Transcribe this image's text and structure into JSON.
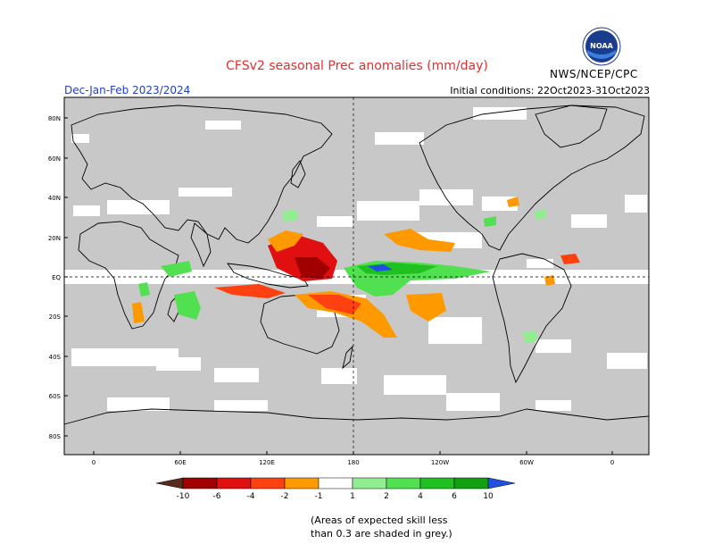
{
  "title": "CFSv2 seasonal Prec anomalies (mm/day)",
  "subtitle": "Dec-Jan-Feb 2023/2024",
  "initial_conditions": "Initial conditions: 22Oct2023-31Oct2023",
  "agency": "NWS/NCEP/CPC",
  "logo_text": "NOAA",
  "lat_labels": [
    "80N",
    "60N",
    "40N",
    "20N",
    "EQ",
    "20S",
    "40S",
    "60S",
    "80S"
  ],
  "lon_labels": [
    "0",
    "60E",
    "120E",
    "180",
    "120W",
    "60W",
    "0"
  ],
  "colorbar": {
    "ticks": [
      "-10",
      "-6",
      "-4",
      "-2",
      "-1",
      "1",
      "2",
      "4",
      "6",
      "10"
    ],
    "colors": [
      "#5a2a1e",
      "#a00000",
      "#e01010",
      "#ff4010",
      "#ff9900",
      "#ffffff",
      "#90ee90",
      "#50e050",
      "#20c020",
      "#10a010",
      "#2050e0"
    ]
  },
  "note_line1": "(Areas of expected skill less",
  "note_line2": "than 0.3 are shaded in grey.)",
  "colors": {
    "skill_grey": "#c8c8c8",
    "title_red": "#e03030",
    "subtitle_blue": "#2040c0"
  }
}
